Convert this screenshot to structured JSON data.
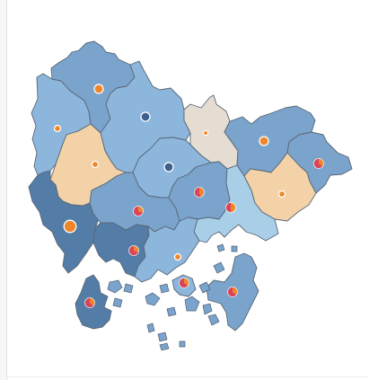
{
  "map": {
    "palette": {
      "dark_blue": "#537da6",
      "mid_blue": "#7aa4cc",
      "light_blue": "#8cb6dc",
      "pale_blue": "#a9cfe8",
      "peach": "#f2d2a6",
      "beige": "#e5ddd2",
      "orange": "#f0862a",
      "red": "#d9455a",
      "navy": "#3d5f8c",
      "white": "#ffffff"
    },
    "regions": [
      {
        "name": "north-central",
        "fill": "#7aa4cc",
        "marker": {
          "kind": "dot",
          "color": "#f0862a",
          "size": "medium"
        }
      },
      {
        "name": "northwest",
        "fill": "#8cb6dc",
        "marker": {
          "kind": "dot",
          "color": "#f0862a",
          "size": "small"
        }
      },
      {
        "name": "north-center-east",
        "fill": "#8cb6dc",
        "marker": {
          "kind": "dot",
          "color": "#3d5f8c",
          "size": "medium"
        }
      },
      {
        "name": "north-beige",
        "fill": "#e5ddd2",
        "marker": {
          "kind": "dot",
          "color": "#f0862a",
          "size": "tiny"
        }
      },
      {
        "name": "northeast",
        "fill": "#7aa4cc",
        "marker": {
          "kind": "dot",
          "color": "#f0862a",
          "size": "medium"
        }
      },
      {
        "name": "far-east",
        "fill": "#7aa4cc",
        "marker": {
          "kind": "pie",
          "share": 0.35
        }
      },
      {
        "name": "west-peach",
        "fill": "#f2d2a6",
        "marker": {
          "kind": "dot",
          "color": "#f0862a",
          "size": "small"
        }
      },
      {
        "name": "center",
        "fill": "#8cb6dc",
        "marker": {
          "kind": "dot",
          "color": "#3d5f8c",
          "size": "medium"
        }
      },
      {
        "name": "east-peach",
        "fill": "#f2d2a6",
        "marker": {
          "kind": "dot",
          "color": "#f0862a",
          "size": "small"
        }
      },
      {
        "name": "southwest-coast",
        "fill": "#537da6",
        "marker": {
          "kind": "dot",
          "color": "#f0862a",
          "size": "large"
        }
      },
      {
        "name": "south-central",
        "fill": "#7aa4cc",
        "marker": {
          "kind": "pie",
          "share": 0.3
        }
      },
      {
        "name": "center-east",
        "fill": "#7aa4cc",
        "marker": {
          "kind": "pie",
          "share": 0.45
        }
      },
      {
        "name": "east-bay",
        "fill": "#a9cfe8",
        "marker": {
          "kind": "pie",
          "share": 0.5
        }
      },
      {
        "name": "south-peninsula",
        "fill": "#537da6",
        "marker": {
          "kind": "pie",
          "share": 0.3
        }
      },
      {
        "name": "south-coast",
        "fill": "#8cb6dc",
        "marker": {
          "kind": "dot",
          "color": "#f0862a",
          "size": "small"
        }
      },
      {
        "name": "southeast-islands",
        "fill": "#7aa4cc",
        "marker": {
          "kind": "pie",
          "share": 0.35
        }
      },
      {
        "name": "south-isle-west",
        "fill": "#537da6",
        "marker": {
          "kind": "pie",
          "share": 0.35
        }
      },
      {
        "name": "south-small",
        "fill": "#8cb6dc",
        "marker": {
          "kind": "pie",
          "share": 0.35
        }
      }
    ]
  }
}
